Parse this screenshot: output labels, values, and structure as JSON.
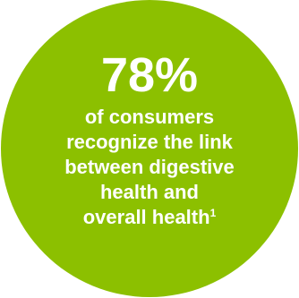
{
  "stat": {
    "value": "78%",
    "caption_lines": [
      "of consumers",
      "recognize the link",
      "between digestive",
      "health and",
      "overall health"
    ],
    "footnote": "1"
  },
  "colors": {
    "circle": "#8cc000",
    "text": "#ffffff",
    "background": "#ffffff"
  }
}
